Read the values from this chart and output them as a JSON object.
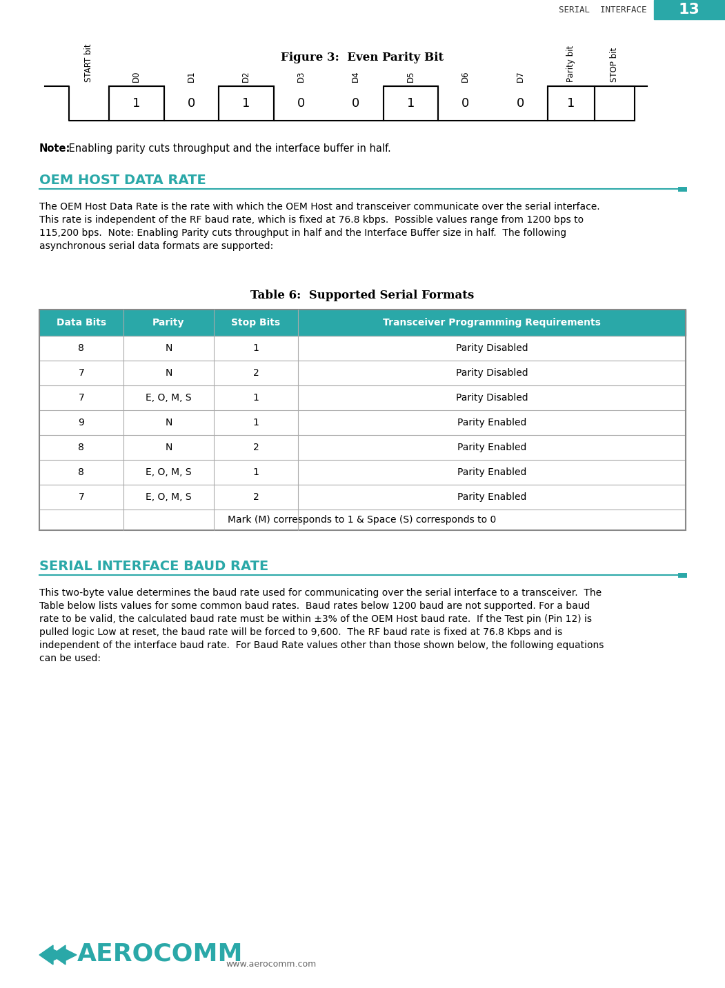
{
  "page_title": "SERIAL  INTERFACE",
  "page_number": "13",
  "header_color": "#2aa8a8",
  "figure_title": "Figure 3:  Even Parity Bit",
  "bit_labels": [
    "START bit",
    "D0",
    "D1",
    "D2",
    "D3",
    "D4",
    "D5",
    "D6",
    "D7",
    "Parity bit",
    "STOP bit"
  ],
  "bit_values": [
    null,
    "1",
    "0",
    "1",
    "0",
    "0",
    "1",
    "0",
    "0",
    "1",
    null
  ],
  "bit_levels": [
    0,
    1,
    0,
    1,
    0,
    0,
    1,
    0,
    0,
    1,
    1
  ],
  "note_bold": "Note:",
  "note_regular": " Enabling parity cuts throughput and the interface buffer in half.",
  "section1_title": "OEM HOST DATA RATE",
  "section1_color": "#2aa8a8",
  "section1_body": "The OEM Host Data Rate is the rate with which the OEM Host and transceiver communicate over the serial interface.\nThis rate is independent of the RF baud rate, which is fixed at 76.8 kbps.  Possible values range from 1200 bps to\n115,200 bps.  Note: Enabling Parity cuts throughput in half and the Interface Buffer size in half.  The following\nasynchronous serial data formats are supported:",
  "table_title": "Table 6:  Supported Serial Formats",
  "table_header": [
    "Data Bits",
    "Parity",
    "Stop Bits",
    "Transceiver Programming Requirements"
  ],
  "table_header_bg": "#2aa8a8",
  "table_header_fg": "#ffffff",
  "table_data": [
    [
      "8",
      "N",
      "1",
      "Parity Disabled"
    ],
    [
      "7",
      "N",
      "2",
      "Parity Disabled"
    ],
    [
      "7",
      "E, O, M, S",
      "1",
      "Parity Disabled"
    ],
    [
      "9",
      "N",
      "1",
      "Parity Enabled"
    ],
    [
      "8",
      "N",
      "2",
      "Parity Enabled"
    ],
    [
      "8",
      "E, O, M, S",
      "1",
      "Parity Enabled"
    ],
    [
      "7",
      "E, O, M, S",
      "2",
      "Parity Enabled"
    ]
  ],
  "table_footer": "Mark (M) corresponds to 1 & Space (S) corresponds to 0",
  "table_border_color": "#aaaaaa",
  "section2_title": "SERIAL INTERFACE BAUD RATE",
  "section2_color": "#2aa8a8",
  "section2_body": "This two-byte value determines the baud rate used for communicating over the serial interface to a transceiver.  The\nTable below lists values for some common baud rates.  Baud rates below 1200 baud are not supported. For a baud\nrate to be valid, the calculated baud rate must be within ±3% of the OEM Host baud rate.  If the Test pin (Pin 12) is\npulled logic Low at reset, the baud rate will be forced to 9,600.  The RF baud rate is fixed at 76.8 Kbps and is\nindependent of the interface baud rate.  For Baud Rate values other than those shown below, the following equations\ncan be used:",
  "footer_url": "www.aerocomm.com",
  "bg_color": "#ffffff"
}
